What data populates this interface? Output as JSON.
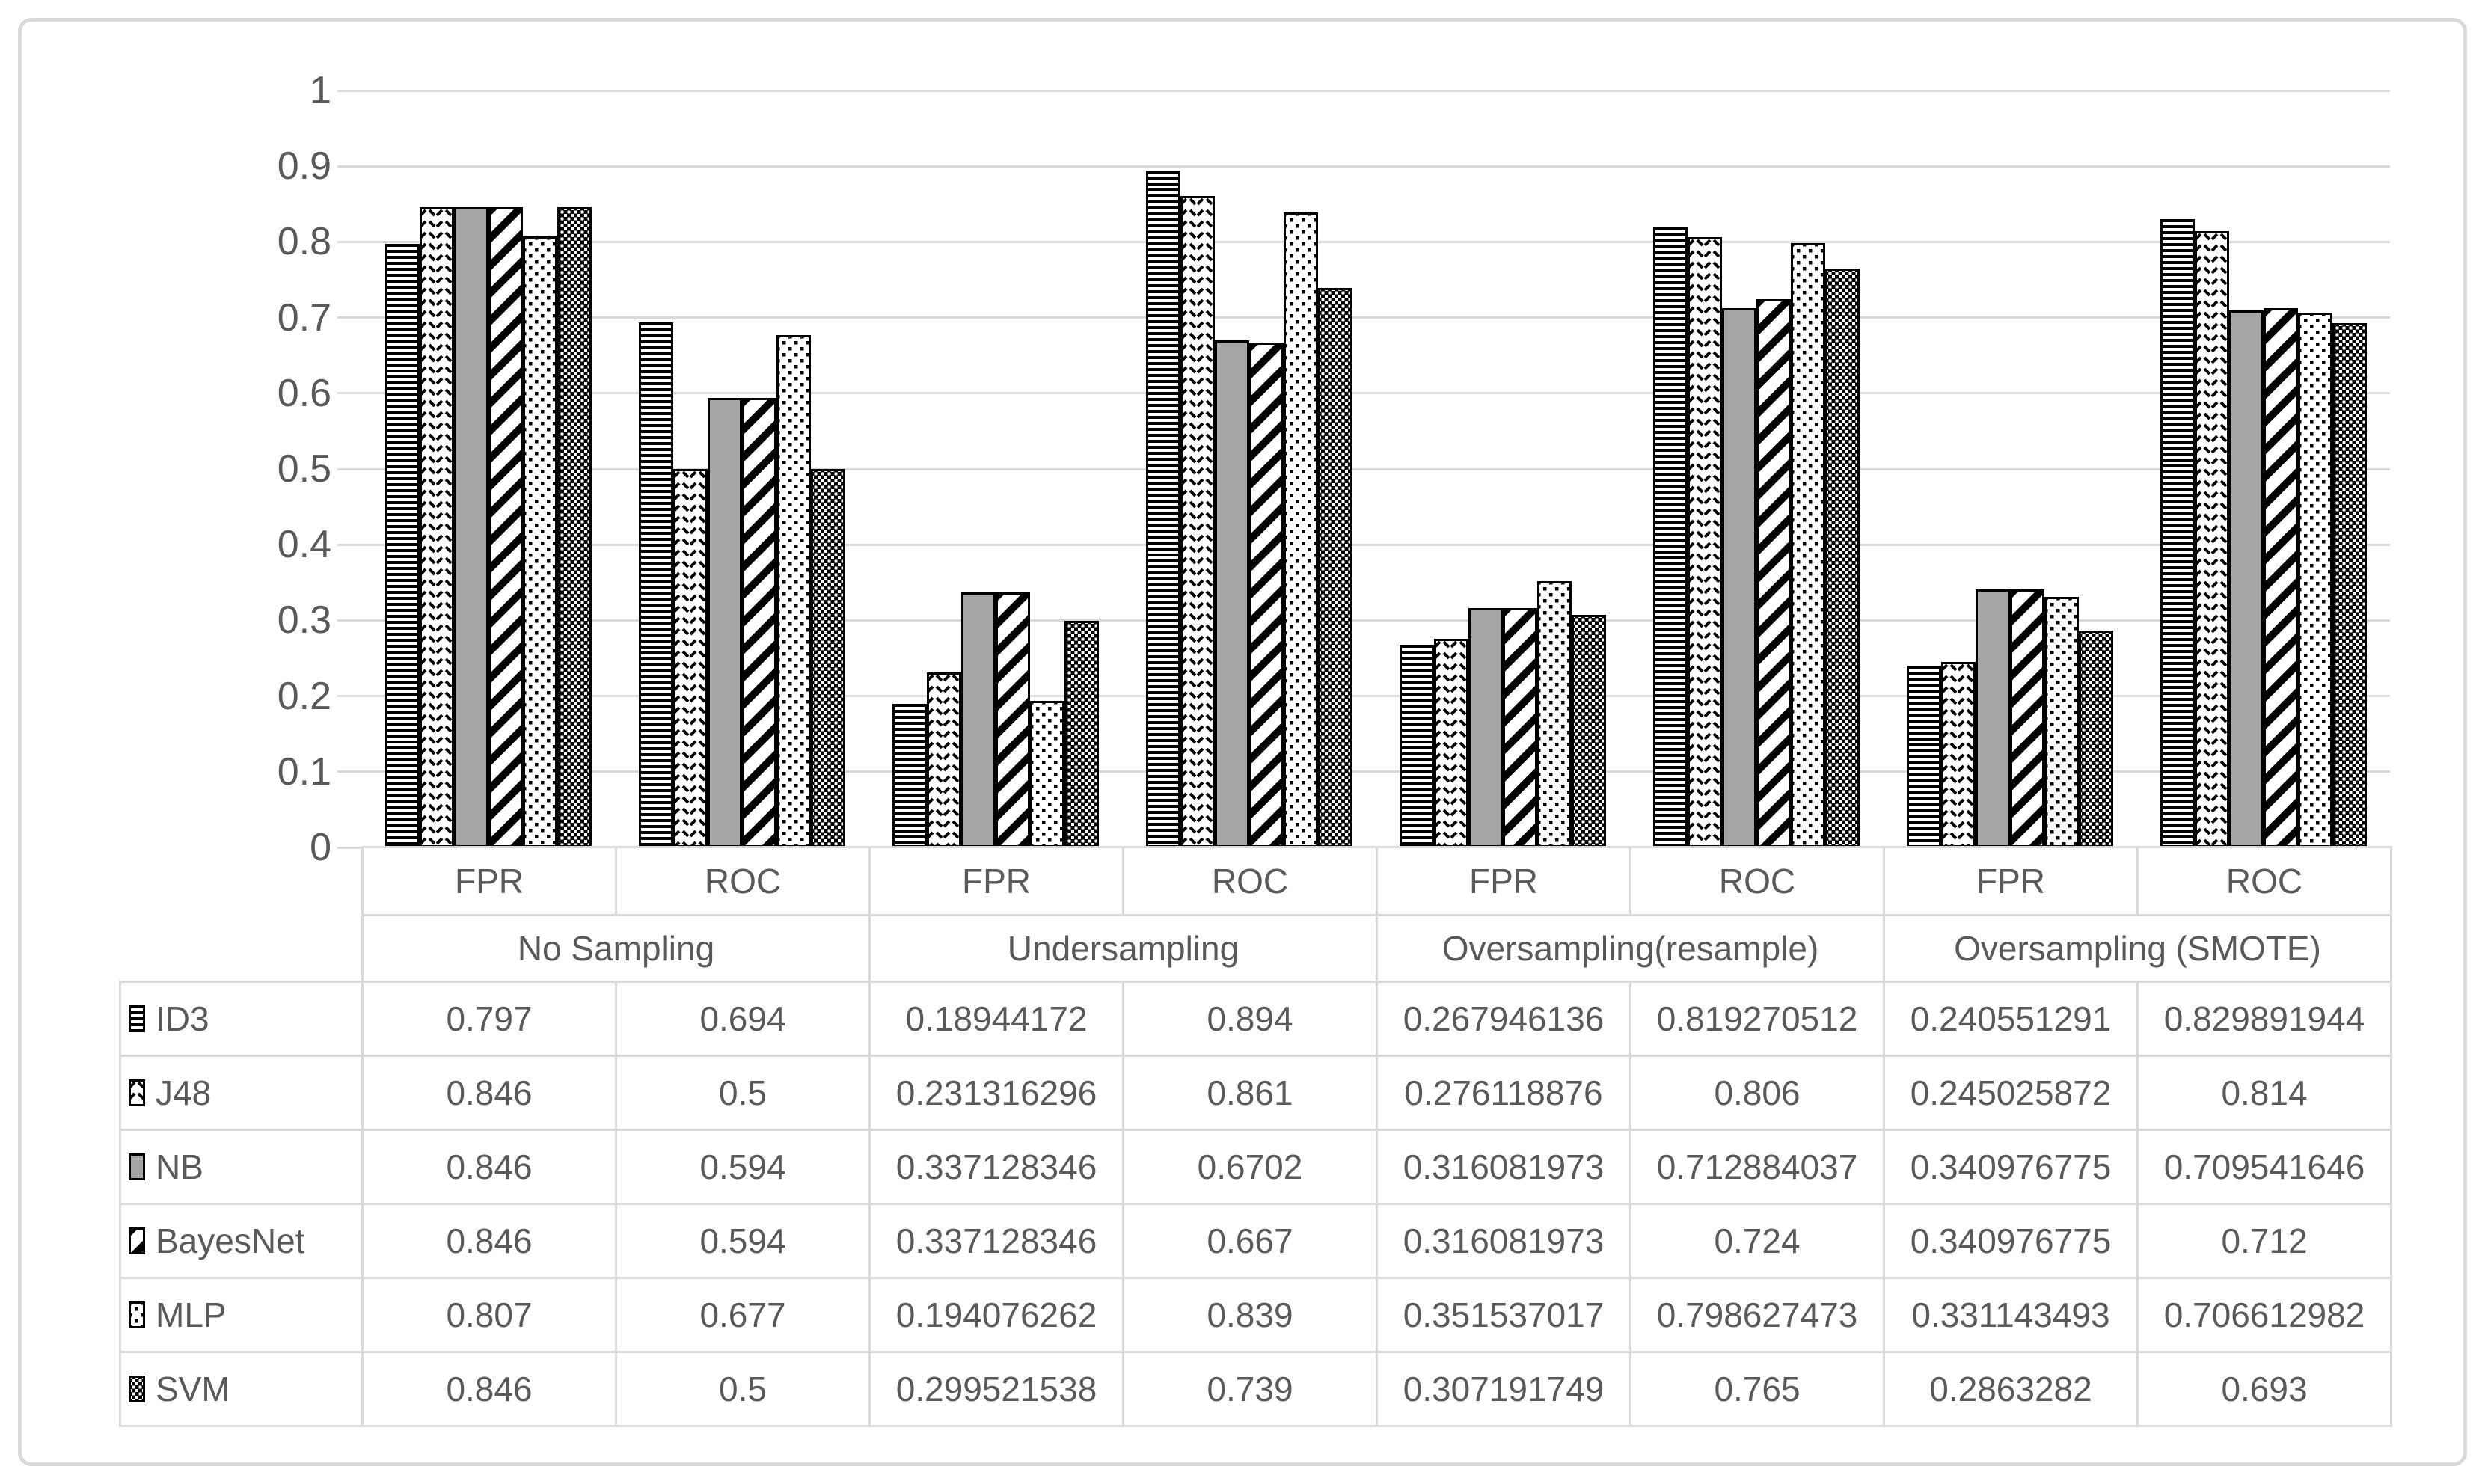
{
  "chart_data": {
    "type": "bar",
    "title": "",
    "grid": true,
    "legend_position": "data-table-left-column",
    "value_axis": {
      "min": 0,
      "max": 1,
      "step": 0.1,
      "tick_labels": [
        "1",
        "0.9",
        "0.8",
        "0.7",
        "0.6",
        "0.5",
        "0.4",
        "0.3",
        "0.2",
        "0.1",
        "0"
      ]
    },
    "categories": [
      "FPR",
      "ROC",
      "FPR",
      "ROC",
      "FPR",
      "ROC",
      "FPR",
      "ROC"
    ],
    "category_groups": [
      "No Sampling",
      "Undersampling",
      "Oversampling(resample)",
      "Oversampling (SMOTE)"
    ],
    "series": [
      {
        "name": "ID3",
        "pattern": "horizontal-lines",
        "values": [
          0.797,
          0.694,
          0.18944172,
          0.894,
          0.267946136,
          0.819270512,
          0.240551291,
          0.829891944
        ]
      },
      {
        "name": "J48",
        "pattern": "zigzag-dashes",
        "values": [
          0.846,
          0.5,
          0.231316296,
          0.861,
          0.276118876,
          0.806,
          0.245025872,
          0.814
        ]
      },
      {
        "name": "NB",
        "pattern": "solid-gray",
        "values": [
          0.846,
          0.594,
          0.337128346,
          0.6702,
          0.316081973,
          0.712884037,
          0.340976775,
          0.709541646
        ]
      },
      {
        "name": "BayesNet",
        "pattern": "diagonal-up",
        "values": [
          0.846,
          0.594,
          0.337128346,
          0.667,
          0.316081973,
          0.724,
          0.340976775,
          0.712
        ]
      },
      {
        "name": "MLP",
        "pattern": "sparse-dots",
        "values": [
          0.807,
          0.677,
          0.194076262,
          0.839,
          0.351537017,
          0.798627473,
          0.331143493,
          0.706612982
        ]
      },
      {
        "name": "SVM",
        "pattern": "small-grid",
        "values": [
          0.846,
          0.5,
          0.299521538,
          0.739,
          0.307191749,
          0.765,
          0.2863282,
          0.693
        ]
      }
    ]
  },
  "colors": {
    "background": "#ffffff",
    "grid_line": "#d9d9d9",
    "table_border": "#d9d9d9",
    "axis_text": "#595959",
    "pattern_black": "#000000",
    "nb_gray": "#a6a6a6"
  }
}
